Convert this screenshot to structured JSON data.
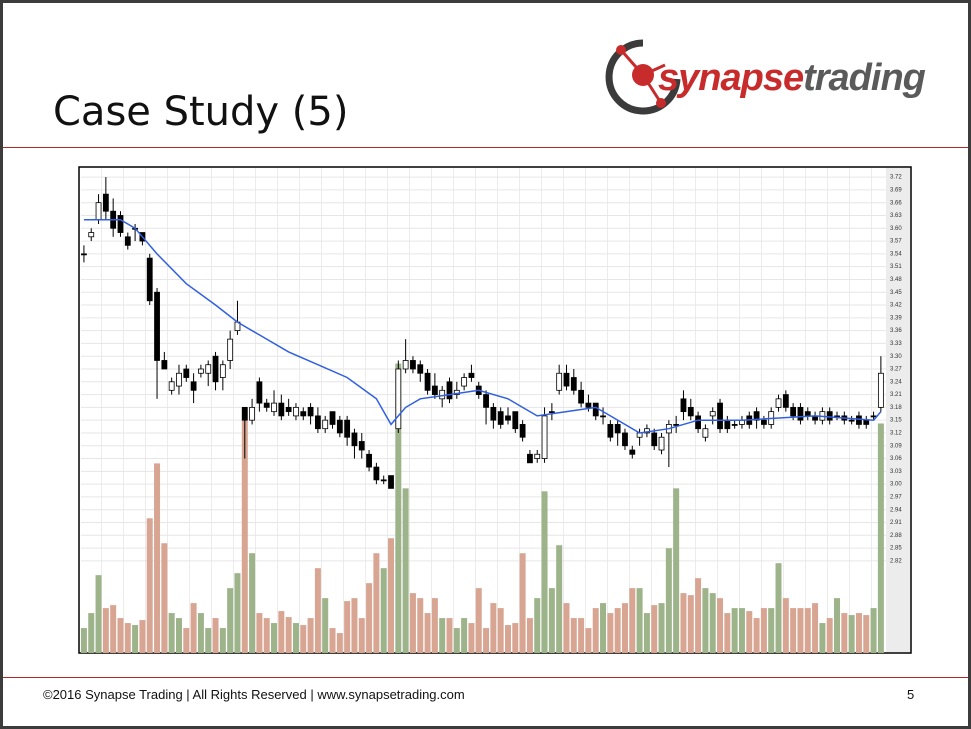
{
  "slide_title": "Case Study (5)",
  "logo": {
    "part1": "synapse",
    "part2": "trading"
  },
  "footer": {
    "text": "©2016 Synapse Trading | All Rights Reserved | www.synapsetrading.com",
    "page": "5"
  },
  "chart_data": {
    "type": "candlestick",
    "xlim": [
      -0.4,
      109.7
    ],
    "ylim": [
      2.604,
      3.739
    ],
    "yticks": [
      3.72,
      3.69,
      3.66,
      3.63,
      {
        "value": 3.6,
        "label": "3.60"
      },
      3.57,
      3.54,
      3.51,
      3.48,
      3.45,
      3.42,
      3.39,
      3.36,
      3.33,
      {
        "value": 3.3,
        "label": "3.30"
      },
      3.27,
      3.24,
      3.21,
      3.18,
      3.15,
      3.12,
      3.09,
      3.06,
      3.03,
      {
        "value": 3,
        "label": "3.00"
      },
      2.97,
      2.94,
      2.91,
      2.88,
      2.85,
      2.82
    ],
    "grid": true,
    "up_color": "#ffffff",
    "down_color": "#000000",
    "volume_up_color": "#9db38a",
    "volume_down_color": "#d8a593",
    "volume_lim": [
      0,
      485
    ],
    "open": [
      3.54,
      3.58,
      3.62,
      3.68,
      3.64,
      3.63,
      3.58,
      3.6,
      3.59,
      3.53,
      3.45,
      3.29,
      3.22,
      3.23,
      3.27,
      3.24,
      3.26,
      3.26,
      3.3,
      3.25,
      3.29,
      3.36,
      3.18,
      3.15,
      3.24,
      3.19,
      3.17,
      3.19,
      3.18,
      3.16,
      3.17,
      3.18,
      3.16,
      3.13,
      3.17,
      3.15,
      3.15,
      3.12,
      3.1,
      3.07,
      3.04,
      3.01,
      3.02,
      3.13,
      3.27,
      3.29,
      3.28,
      3.26,
      3.23,
      3.2,
      3.24,
      3.21,
      3.23,
      3.26,
      3.23,
      3.21,
      3.18,
      3.17,
      3.16,
      3.17,
      3.14,
      3.07,
      3.06,
      3.06,
      3.17,
      3.22,
      3.26,
      3.25,
      3.22,
      3.19,
      3.19,
      3.16,
      3.14,
      3.14,
      3.12,
      3.08,
      3.11,
      3.12,
      3.12,
      3.08,
      3.12,
      3.14,
      3.2,
      3.18,
      3.16,
      3.11,
      3.16,
      3.19,
      3.15,
      3.14,
      3.14,
      3.16,
      3.17,
      3.15,
      3.14,
      3.18,
      3.21,
      3.18,
      3.18,
      3.17,
      3.16,
      3.15,
      3.17,
      3.16,
      3.16,
      3.15,
      3.16,
      3.15,
      3.16,
      3.18
    ],
    "high": [
      3.56,
      3.6,
      3.68,
      3.72,
      3.67,
      3.64,
      3.59,
      3.61,
      3.59,
      3.54,
      3.46,
      3.31,
      3.25,
      3.28,
      3.28,
      3.26,
      3.28,
      3.29,
      3.31,
      3.29,
      3.36,
      3.43,
      3.18,
      3.2,
      3.25,
      3.2,
      3.22,
      3.21,
      3.2,
      3.19,
      3.18,
      3.19,
      3.18,
      3.16,
      3.17,
      3.16,
      3.16,
      3.13,
      3.12,
      3.08,
      3.05,
      3.02,
      3.02,
      3.29,
      3.34,
      3.3,
      3.29,
      3.27,
      3.26,
      3.23,
      3.25,
      3.24,
      3.26,
      3.28,
      3.24,
      3.22,
      3.19,
      3.18,
      3.18,
      3.17,
      3.15,
      3.08,
      3.08,
      3.18,
      3.19,
      3.28,
      3.28,
      3.27,
      3.24,
      3.21,
      3.19,
      3.18,
      3.15,
      3.15,
      3.13,
      3.09,
      3.13,
      3.14,
      3.13,
      3.12,
      3.15,
      3.16,
      3.22,
      3.2,
      3.17,
      3.14,
      3.18,
      3.2,
      3.16,
      3.15,
      3.16,
      3.17,
      3.18,
      3.16,
      3.18,
      3.21,
      3.22,
      3.19,
      3.19,
      3.18,
      3.17,
      3.18,
      3.18,
      3.17,
      3.17,
      3.16,
      3.17,
      3.16,
      3.17,
      3.3
    ],
    "low": [
      3.52,
      3.57,
      3.61,
      3.62,
      3.58,
      3.58,
      3.55,
      3.57,
      3.56,
      3.42,
      3.2,
      3.27,
      3.21,
      3.21,
      3.24,
      3.19,
      3.25,
      3.23,
      3.22,
      3.22,
      3.27,
      3.35,
      3.06,
      3.14,
      3.17,
      3.17,
      3.16,
      3.15,
      3.16,
      3.15,
      3.15,
      3.14,
      3.12,
      3.12,
      3.13,
      3.11,
      3.09,
      3.06,
      3.06,
      3.03,
      3.0,
      3.0,
      2.99,
      3.12,
      3.26,
      3.26,
      3.24,
      3.21,
      3.2,
      3.18,
      3.19,
      3.2,
      3.22,
      3.24,
      3.2,
      3.14,
      3.13,
      3.13,
      3.14,
      3.12,
      3.1,
      3.05,
      3.05,
      3.05,
      3.15,
      3.21,
      3.22,
      3.21,
      3.18,
      3.17,
      3.15,
      3.14,
      3.1,
      3.09,
      3.08,
      3.06,
      3.09,
      3.11,
      3.08,
      3.07,
      3.04,
      3.12,
      3.15,
      3.15,
      3.12,
      3.1,
      3.14,
      3.12,
      3.12,
      3.13,
      3.13,
      3.13,
      3.13,
      3.13,
      3.13,
      3.17,
      3.17,
      3.15,
      3.14,
      3.15,
      3.14,
      3.14,
      3.14,
      3.15,
      3.14,
      3.14,
      3.13,
      3.13,
      3.15,
      3.17
    ],
    "close": [
      3.54,
      3.59,
      3.66,
      3.64,
      3.6,
      3.59,
      3.56,
      3.6,
      3.57,
      3.43,
      3.29,
      3.27,
      3.24,
      3.26,
      3.25,
      3.22,
      3.27,
      3.28,
      3.24,
      3.28,
      3.34,
      3.38,
      3.15,
      3.18,
      3.19,
      3.18,
      3.19,
      3.16,
      3.17,
      3.18,
      3.16,
      3.16,
      3.13,
      3.15,
      3.14,
      3.12,
      3.11,
      3.09,
      3.08,
      3.04,
      3.01,
      3.01,
      2.99,
      3.27,
      3.29,
      3.27,
      3.26,
      3.22,
      3.21,
      3.22,
      3.2,
      3.22,
      3.25,
      3.25,
      3.21,
      3.18,
      3.15,
      3.14,
      3.15,
      3.13,
      3.11,
      3.05,
      3.07,
      3.16,
      3.17,
      3.26,
      3.23,
      3.22,
      3.19,
      3.18,
      3.16,
      3.16,
      3.11,
      3.12,
      3.09,
      3.07,
      3.12,
      3.13,
      3.09,
      3.11,
      3.14,
      3.14,
      3.17,
      3.16,
      3.13,
      3.13,
      3.17,
      3.13,
      3.13,
      3.14,
      3.15,
      3.14,
      3.15,
      3.14,
      3.17,
      3.2,
      3.18,
      3.16,
      3.15,
      3.16,
      3.15,
      3.17,
      3.15,
      3.16,
      3.15,
      3.15,
      3.14,
      3.14,
      3.16,
      3.26
    ],
    "volume": [
      25,
      40,
      78,
      45,
      48,
      35,
      30,
      28,
      33,
      135,
      190,
      110,
      40,
      35,
      25,
      50,
      40,
      25,
      35,
      25,
      65,
      80,
      245,
      100,
      40,
      35,
      30,
      42,
      36,
      30,
      28,
      35,
      85,
      55,
      25,
      20,
      52,
      55,
      35,
      70,
      100,
      85,
      115,
      290,
      165,
      60,
      55,
      40,
      55,
      35,
      35,
      25,
      35,
      30,
      65,
      25,
      50,
      45,
      28,
      30,
      100,
      35,
      55,
      162,
      65,
      108,
      50,
      35,
      35,
      25,
      45,
      50,
      40,
      45,
      50,
      65,
      65,
      40,
      48,
      50,
      105,
      165,
      60,
      58,
      75,
      65,
      60,
      55,
      40,
      45,
      45,
      42,
      35,
      45,
      45,
      90,
      55,
      45,
      45,
      45,
      50,
      30,
      35,
      55,
      40,
      38,
      40,
      38,
      45,
      230
    ],
    "moving_average": {
      "color": "#3060e0",
      "x": [
        0,
        5,
        7,
        10,
        14,
        18,
        21,
        24,
        28,
        32,
        36,
        40,
        42,
        44,
        46,
        50,
        54,
        58,
        60,
        62,
        66,
        70,
        72,
        76,
        80,
        84,
        90,
        100,
        108,
        109
      ],
      "values": [
        3.62,
        3.62,
        3.6,
        3.54,
        3.47,
        3.42,
        3.38,
        3.35,
        3.31,
        3.28,
        3.25,
        3.2,
        3.14,
        3.18,
        3.2,
        3.21,
        3.22,
        3.2,
        3.18,
        3.16,
        3.17,
        3.18,
        3.16,
        3.12,
        3.13,
        3.15,
        3.15,
        3.16,
        3.15,
        3.17
      ]
    }
  }
}
